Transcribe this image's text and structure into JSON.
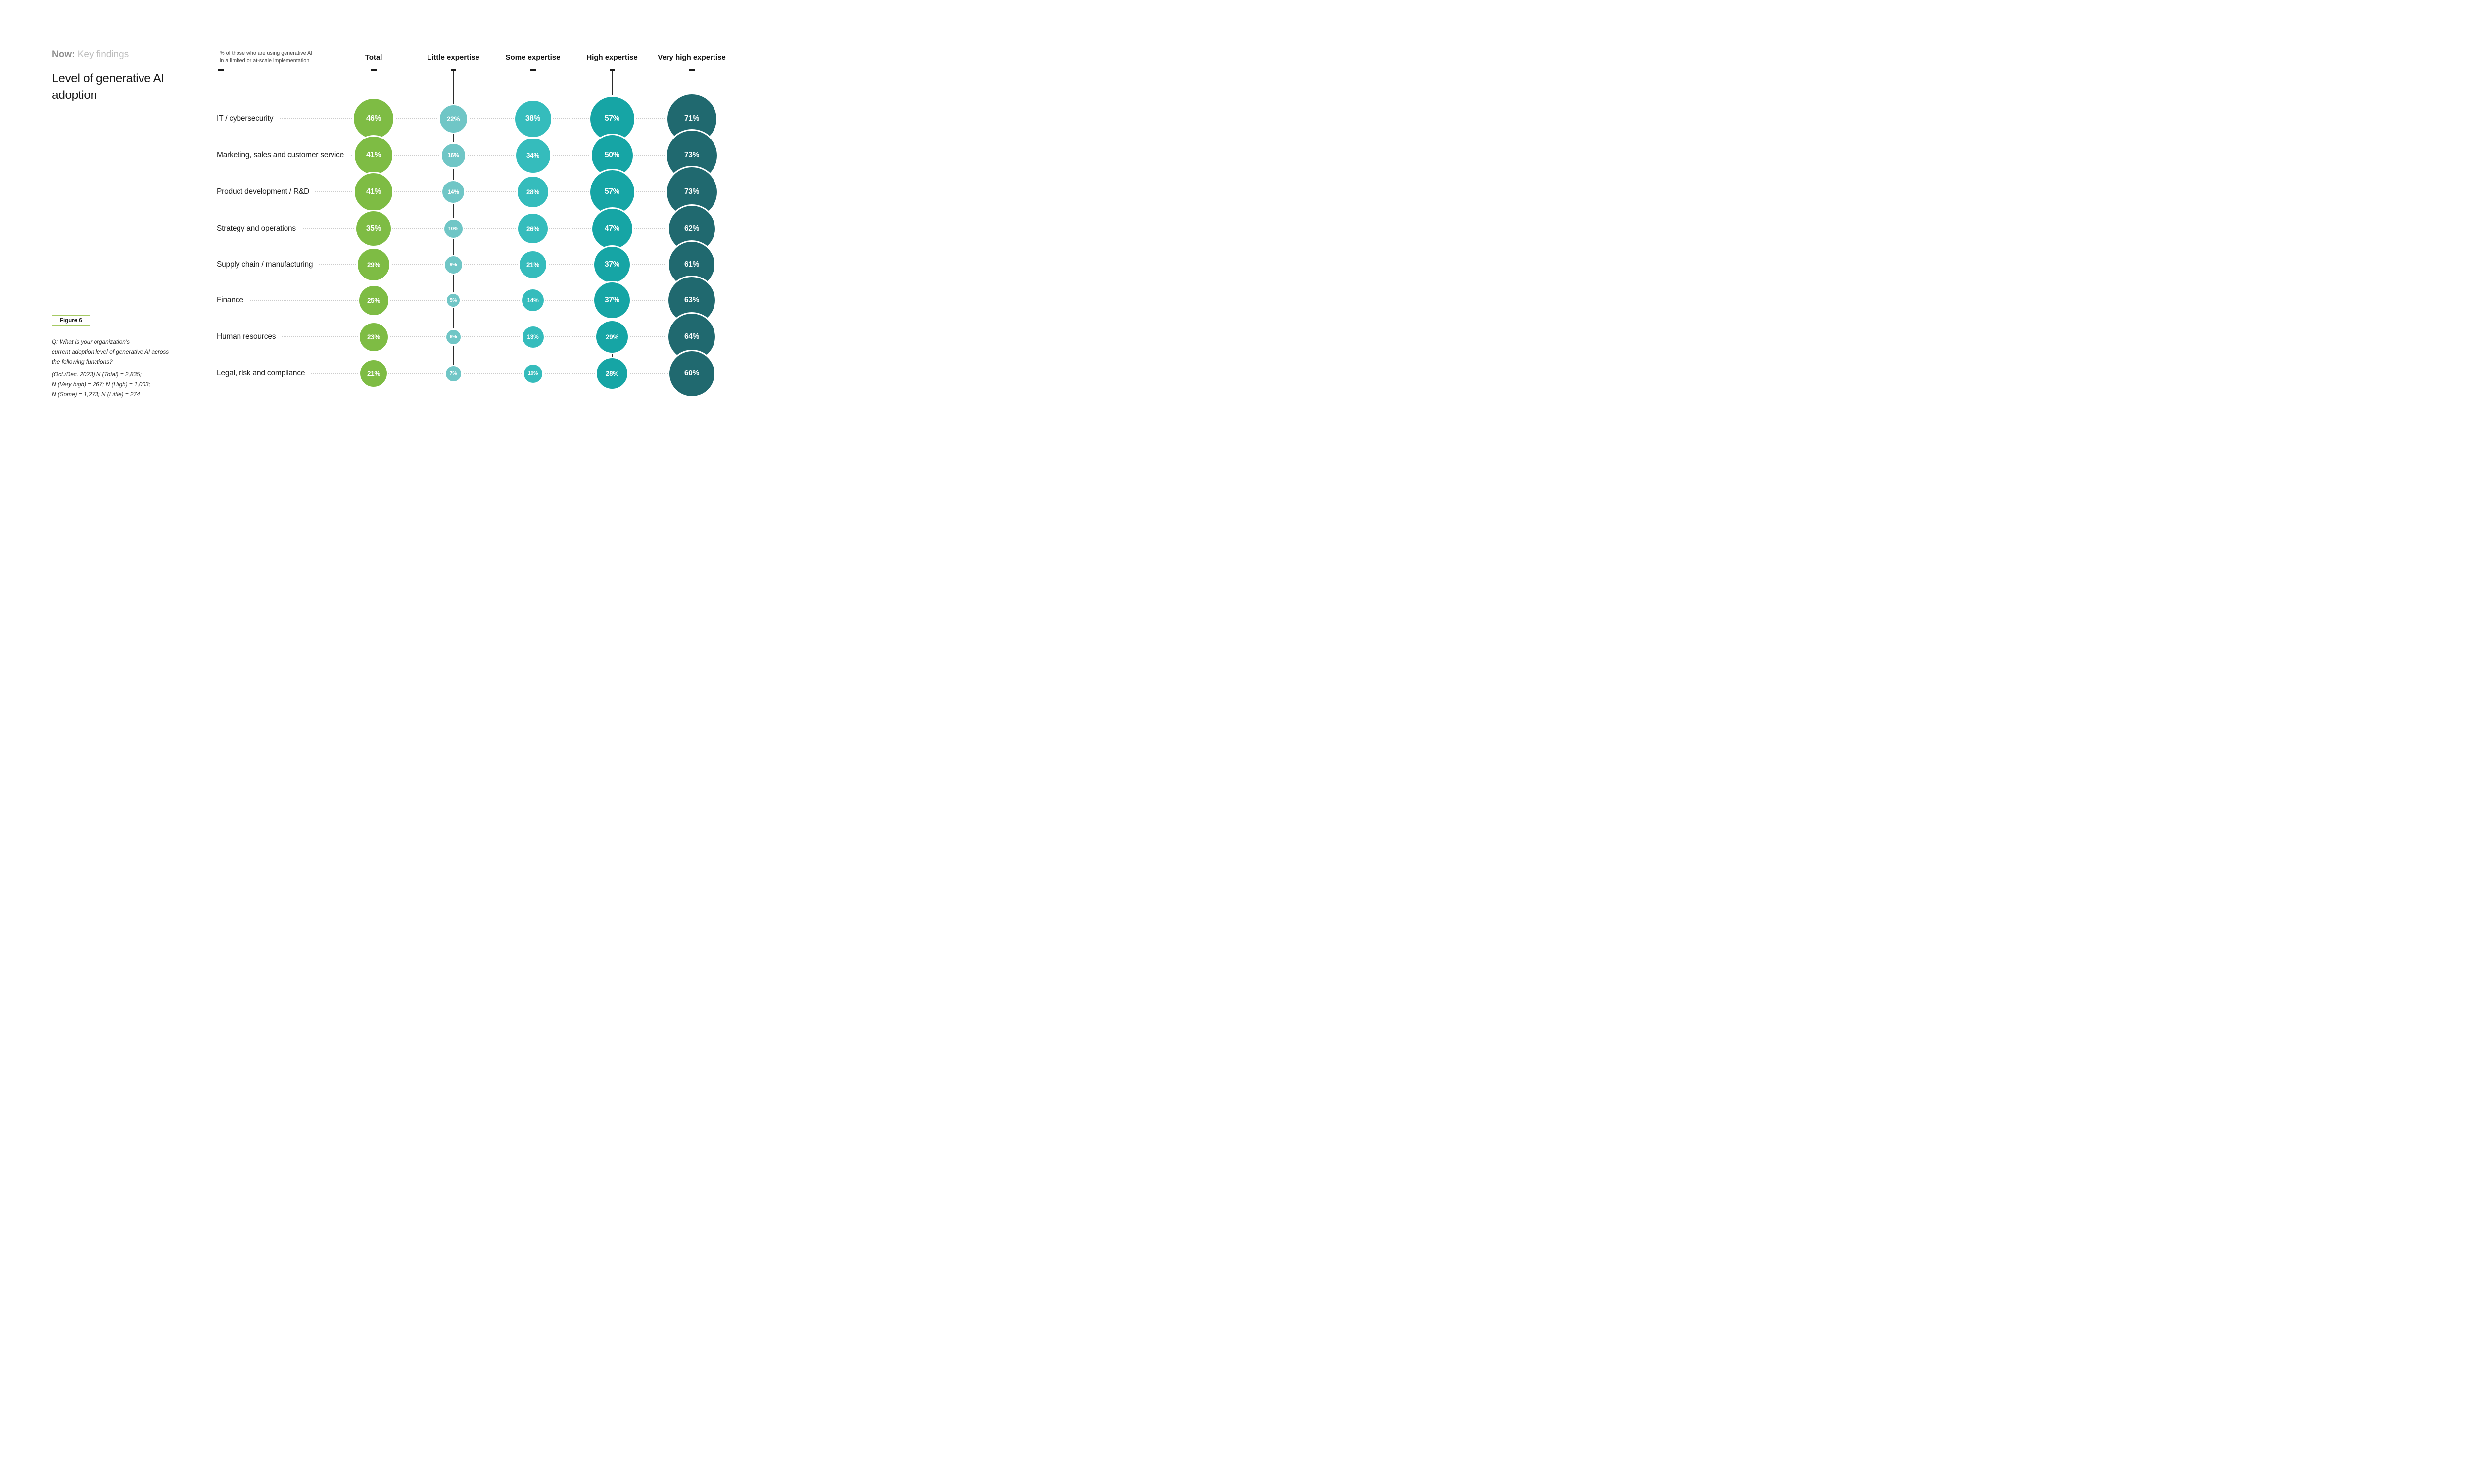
{
  "header": {
    "eyebrow_bold": "Now:",
    "eyebrow_rest": " Key findings",
    "title": "Level of generative AI adoption"
  },
  "figure_badge": "Figure 6",
  "footnote": {
    "question_lines": [
      "Q: What is your organization’s",
      "current adoption level of generative AI across",
      "the following functions?"
    ],
    "sample_lines": [
      "(Oct./Dec. 2023) N (Total) = 2,835;",
      "N (Very high) = 267; N (High) = 1,003;",
      "N (Some) = 1,273; N (Little) = 274"
    ]
  },
  "chart_data": {
    "type": "bubble",
    "note_lines": [
      "% of those who are using generative AI",
      "in a limited or at-scale implementation"
    ],
    "unit": "%",
    "categories": [
      "IT / cybersecurity",
      "Marketing, sales and customer service",
      "Product development / R&D",
      "Strategy and operations",
      "Supply chain / manufacturing",
      "Finance",
      "Human resources",
      "Legal, risk and compliance"
    ],
    "series": [
      {
        "name": "Total",
        "color": "#7ebc44",
        "values": [
          46,
          41,
          41,
          35,
          29,
          25,
          23,
          21
        ]
      },
      {
        "name": "Little expertise",
        "color": "#70c6c6",
        "values": [
          22,
          16,
          14,
          10,
          9,
          5,
          6,
          7
        ]
      },
      {
        "name": "Some expertise",
        "color": "#35bcbc",
        "values": [
          38,
          34,
          28,
          26,
          21,
          14,
          13,
          10
        ]
      },
      {
        "name": "High expertise",
        "color": "#16a5a5",
        "values": [
          57,
          50,
          57,
          47,
          37,
          37,
          29,
          28
        ]
      },
      {
        "name": "Very high expertise",
        "color": "#20696f",
        "values": [
          71,
          73,
          73,
          62,
          61,
          63,
          64,
          60
        ]
      }
    ],
    "layout_hints": {
      "bubble_size": "diameter proportional to sqrt(value)",
      "row_leader_lines": "dotted",
      "column_axis_lines": "solid vertical with top tick"
    }
  }
}
